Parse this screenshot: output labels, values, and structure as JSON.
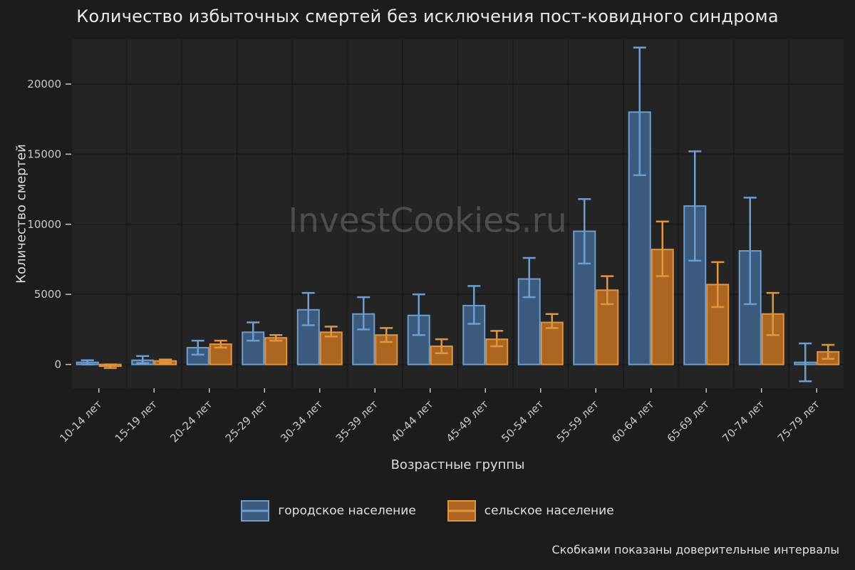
{
  "watermark": "InvestCookies.ru",
  "footnote": "Скобками показаны доверительные интервалы",
  "chart_data": {
    "type": "bar",
    "title": "Количество избыточных смертей без исключения пост-ковидного синдрома",
    "xlabel": "Возрастные группы",
    "ylabel": "Количество смертей",
    "categories": [
      "10-14 лет",
      "15-19 лет",
      "20-24 лет",
      "25-29 лет",
      "30-34 лет",
      "35-39 лет",
      "40-44 лет",
      "45-49 лет",
      "50-54 лет",
      "55-59 лет",
      "60-64 лет",
      "65-69 лет",
      "70-74 лет",
      "75-79 лет"
    ],
    "series": [
      {
        "name": "городское население",
        "color": "#3b5a7d",
        "edge": "#6e9ecf",
        "errbar": "#6e9ecf",
        "values": [
          150,
          300,
          1200,
          2300,
          3900,
          3600,
          3500,
          4200,
          6100,
          9500,
          18000,
          11300,
          8100,
          150
        ],
        "ci_low": [
          0,
          100,
          700,
          1700,
          2800,
          2500,
          2100,
          2900,
          4800,
          7200,
          13500,
          7400,
          4300,
          -1200
        ],
        "ci_high": [
          300,
          600,
          1700,
          3000,
          5100,
          4800,
          5000,
          5600,
          7600,
          11800,
          22600,
          15200,
          11900,
          1500
        ]
      },
      {
        "name": "сельское население",
        "color": "#ad6621",
        "edge": "#e1953f",
        "errbar": "#e1953f",
        "values": [
          -120,
          250,
          1450,
          1900,
          2300,
          2100,
          1300,
          1800,
          3000,
          5300,
          8200,
          5700,
          3600,
          900
        ],
        "ci_low": [
          -250,
          120,
          1200,
          1700,
          2000,
          1600,
          800,
          1300,
          2600,
          4300,
          6300,
          4100,
          2100,
          400
        ],
        "ci_high": [
          0,
          350,
          1700,
          2100,
          2700,
          2600,
          1800,
          2400,
          3600,
          6300,
          10200,
          7300,
          5100,
          1400
        ]
      }
    ],
    "ylim": [
      -1700,
      23200
    ],
    "yticks": [
      0,
      5000,
      10000,
      15000,
      20000
    ],
    "grid": true,
    "legend_position": "bottom",
    "background": "#1c1c1c",
    "panel_background": "#242424",
    "grid_color": "#1b1b1b",
    "text_color": "#c8c8c8"
  }
}
